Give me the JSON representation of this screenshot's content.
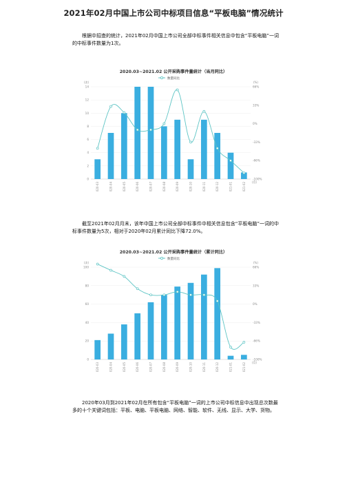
{
  "document": {
    "title": "2021年02月中国上市公司中标项目信息“平板电脑”情况统计",
    "paragraph_1": "根据中招查的统计，2021年02月中国上市公司全部中标事件相关信息中包含“平板电脑”一词的中标事件数量为1次。",
    "paragraph_2": "截至2021年02月月末，该年中国上市公司全部中标事件中相关信息包含“平板电脑”一词的中标事件数量为5次，相对于2020年02月累计同比下降72.0%。",
    "paragraph_3": "2020年03月到2021年02月在所有包含“平板电脑”一词的上市公司中标信息中出现总次数最多的十个关键词包括：平板、电脑、平板电脑、网络、智能、软件、无线、显示、大学、货物。"
  },
  "chart_data": [
    {
      "type": "bar",
      "title": "2020.03~2021.02 公开采购事件量统计（当月同比）",
      "legend": "数量同比",
      "left_unit": "(次)",
      "right_unit": "(%)",
      "x_unit": "(月)",
      "categories": [
        "2020-03",
        "2020-04",
        "2020-05",
        "2020-06",
        "2020-07",
        "2020-08",
        "2020-09",
        "2020-10",
        "2020-11",
        "2020-12",
        "2021-01",
        "2021-02"
      ],
      "values": [
        3,
        7,
        10,
        14,
        14,
        8,
        9,
        3,
        9,
        7,
        4,
        1
      ],
      "yoy": [
        -50,
        18,
        8,
        -20,
        -20,
        -10,
        45,
        -40,
        10,
        -50,
        -70,
        -90
      ],
      "ylim": [
        0,
        14
      ],
      "yticks": [
        "0",
        "2",
        "4",
        "6",
        "8",
        "10",
        "12",
        "14"
      ],
      "y2lim": [
        -100,
        50
      ],
      "y2ticks": [
        "-100%",
        "-66%",
        "-33%",
        "0%",
        "33%",
        "66%"
      ],
      "bar_color": "#3aaee0",
      "line_color": "#5cc4c4"
    },
    {
      "type": "bar",
      "title": "2020.03~2021.02 公开采购事件量统计（累计同比）",
      "legend": "数量同比",
      "left_unit": "(次)",
      "right_unit": "(%)",
      "x_unit": "(月)",
      "categories": [
        "2020-03",
        "2020-04",
        "2020-05",
        "2020-06",
        "2020-07",
        "2020-08",
        "2020-09",
        "2020-10",
        "2020-11",
        "2020-12",
        "2021-01",
        "2021-02"
      ],
      "values": [
        21,
        28,
        38,
        50,
        62,
        70,
        79,
        83,
        92,
        99,
        4,
        5
      ],
      "yoy": [
        55,
        45,
        35,
        15,
        5,
        5,
        10,
        5,
        5,
        -5,
        -80,
        -72
      ],
      "ylim": [
        0,
        100
      ],
      "yticks": [
        "0",
        "20",
        "40",
        "60",
        "80",
        "100"
      ],
      "y2lim": [
        -100,
        50
      ],
      "y2ticks": [
        "-100%",
        "-66%",
        "-33%",
        "0%",
        "33%",
        "66%"
      ],
      "bar_color": "#3aaee0",
      "line_color": "#5cc4c4"
    }
  ]
}
